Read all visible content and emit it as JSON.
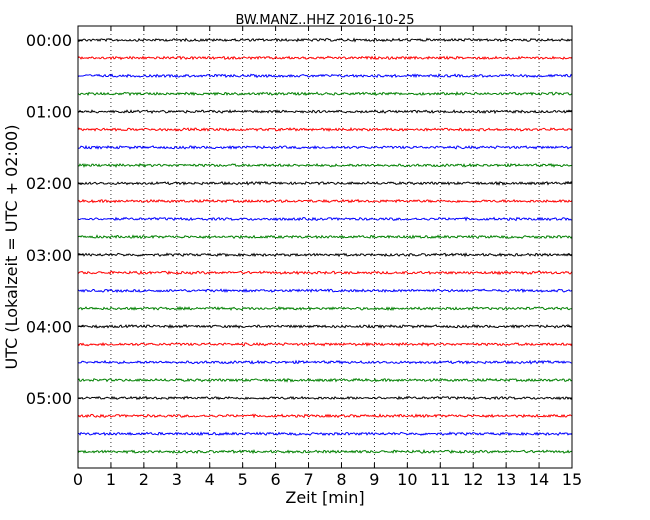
{
  "chart_data": {
    "type": "line",
    "title": "BW.MANZ..HHZ 2016-10-25",
    "xlabel": "Zeit  [min]",
    "ylabel": "UTC (Lokalzeit = UTC + 02:00)",
    "xlim": [
      0,
      15
    ],
    "x_ticks": [
      "0",
      "1",
      "2",
      "3",
      "4",
      "5",
      "6",
      "7",
      "8",
      "9",
      "10",
      "11",
      "12",
      "13",
      "14",
      "15"
    ],
    "y_tick_labels": [
      "00:00",
      "01:00",
      "02:00",
      "03:00",
      "04:00",
      "05:00"
    ],
    "grid": "vertical-dotted",
    "trace_colors": [
      "#000000",
      "#ff0000",
      "#0000ff",
      "#008000"
    ],
    "trace_count": 24,
    "trace_interval_minutes": 15
  }
}
